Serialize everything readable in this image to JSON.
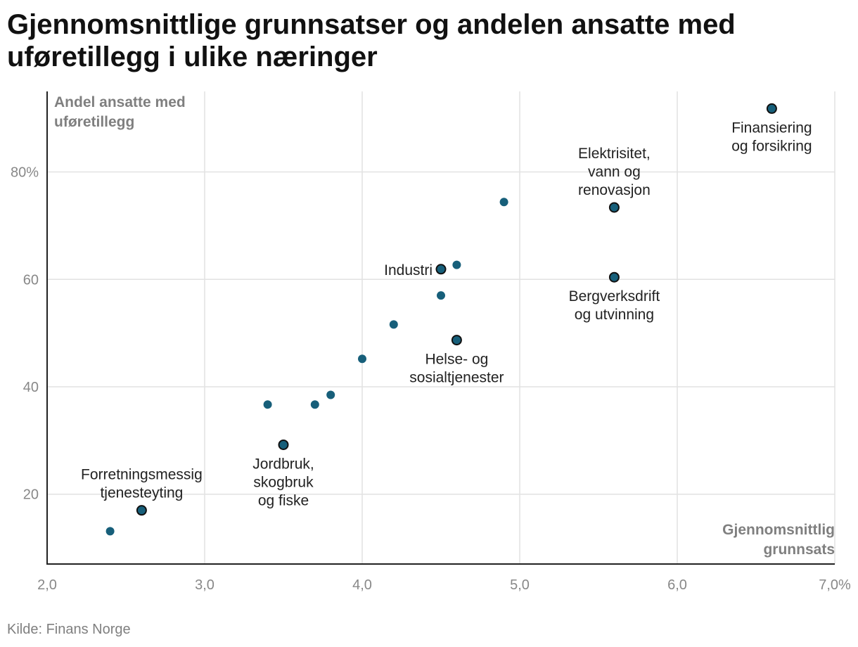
{
  "title": {
    "line1": "Gjennomsnittlige grunnsatser og andelen ansatte med",
    "line2": "uføretillegg i ulike næringer"
  },
  "source": "Kilde: Finans Norge",
  "colors": {
    "point": "#175f7a",
    "point_outline": "#111111",
    "grid": "#e2e2e2",
    "axis": "#222222",
    "tick_label": "#888888",
    "axis_title": "#7f7f7f",
    "annotation": "#222222"
  },
  "chart_data": {
    "type": "scatter",
    "title": "Gjennomsnittlige grunnsatser og andelen ansatte med uføretillegg i ulike næringer",
    "xlabel": "Gjennomsnittlig grunnsats",
    "ylabel": "Andel ansatte med uføretillegg",
    "xlim": [
      2.0,
      7.0
    ],
    "ylim": [
      7,
      95
    ],
    "x_ticks": [
      2.0,
      3.0,
      4.0,
      5.0,
      6.0,
      7.0
    ],
    "x_tick_labels": [
      "2,0",
      "3,0",
      "4,0",
      "5,0",
      "6,0",
      "7,0%"
    ],
    "y_ticks": [
      20,
      40,
      60,
      80
    ],
    "y_tick_labels": [
      "20",
      "40",
      "60",
      "80%"
    ],
    "grid": true,
    "points": [
      {
        "x": 2.4,
        "y": 13.1,
        "label": ""
      },
      {
        "x": 2.6,
        "y": 17.0,
        "label": "Forretningsmessig\ntjenesteyting",
        "label_pos": "above"
      },
      {
        "x": 3.4,
        "y": 36.7,
        "label": ""
      },
      {
        "x": 3.5,
        "y": 29.2,
        "label": "Jordbruk,\nskogbruk\nog fiske",
        "label_pos": "below"
      },
      {
        "x": 3.7,
        "y": 36.7,
        "label": ""
      },
      {
        "x": 3.8,
        "y": 38.5,
        "label": ""
      },
      {
        "x": 4.0,
        "y": 45.2,
        "label": ""
      },
      {
        "x": 4.2,
        "y": 51.6,
        "label": ""
      },
      {
        "x": 4.5,
        "y": 57.0,
        "label": ""
      },
      {
        "x": 4.5,
        "y": 61.9,
        "label": "Industri",
        "label_pos": "left"
      },
      {
        "x": 4.6,
        "y": 62.7,
        "label": ""
      },
      {
        "x": 4.6,
        "y": 48.7,
        "label": "Helse- og\nsosialtjenester",
        "label_pos": "below"
      },
      {
        "x": 4.9,
        "y": 74.4,
        "label": ""
      },
      {
        "x": 5.6,
        "y": 73.4,
        "label": "Elektrisitet,\nvann og\nrenovasjon",
        "label_pos": "above"
      },
      {
        "x": 5.6,
        "y": 60.4,
        "label": "Bergverksdrift\nog utvinning",
        "label_pos": "below"
      },
      {
        "x": 6.6,
        "y": 91.8,
        "label": "Finansiering\nog forsikring",
        "label_pos": "below"
      }
    ]
  }
}
